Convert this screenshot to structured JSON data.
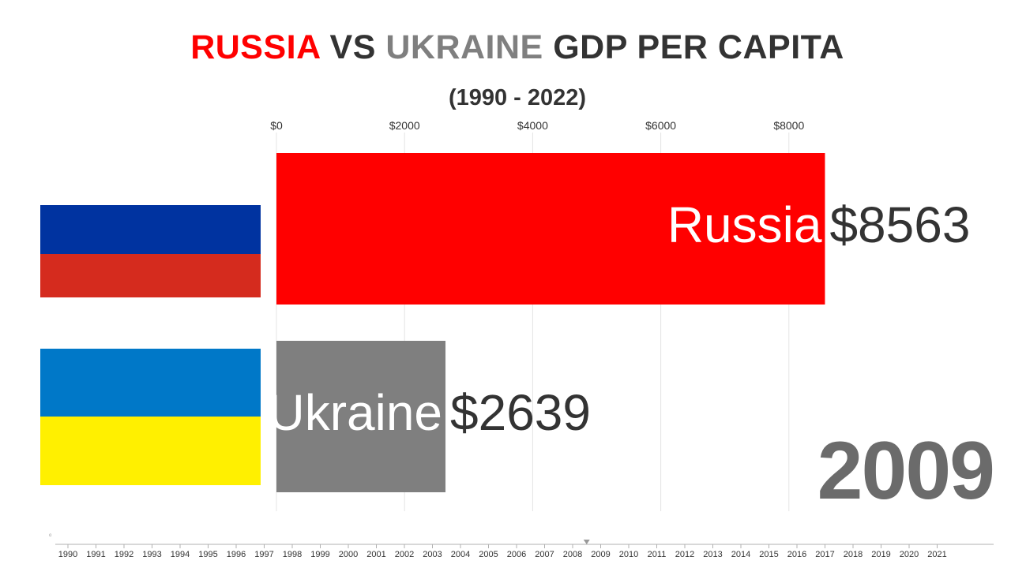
{
  "title": {
    "part1": "RUSSIA",
    "part2": " VS ",
    "part3": "UKRAINE",
    "part4": " GDP PER CAPITA"
  },
  "subtitle": "(1990 - 2022)",
  "current_year": "2009",
  "timeline": {
    "years": [
      "1990",
      "1991",
      "1992",
      "1993",
      "1994",
      "1995",
      "1996",
      "1997",
      "1998",
      "1999",
      "2000",
      "2001",
      "2002",
      "2003",
      "2004",
      "2005",
      "2006",
      "2007",
      "2008",
      "2009",
      "2010",
      "2011",
      "2012",
      "2013",
      "2014",
      "2015",
      "2016",
      "2017",
      "2018",
      "2019",
      "2020",
      "2021"
    ],
    "marker_position_year": 2008.5,
    "dot_label": "o"
  },
  "flags": {
    "russia": [
      "#ffffff",
      "#0033a0",
      "#d52b1e"
    ],
    "ukraine": [
      "#0078c8",
      "#fff000"
    ]
  },
  "chart_data": {
    "type": "bar",
    "orientation": "horizontal",
    "xlim": [
      0,
      9000
    ],
    "x_ticks": [
      0,
      2000,
      4000,
      6000,
      8000
    ],
    "x_tick_labels": [
      "$0",
      "$2000",
      "$4000",
      "$6000",
      "$8000"
    ],
    "grid": true,
    "categories": [
      "Russia",
      "Ukraine"
    ],
    "values": [
      8563,
      2639
    ],
    "value_labels": [
      "$8563",
      "$2639"
    ],
    "colors": [
      "#ff0000",
      "#7f7f7f"
    ]
  }
}
